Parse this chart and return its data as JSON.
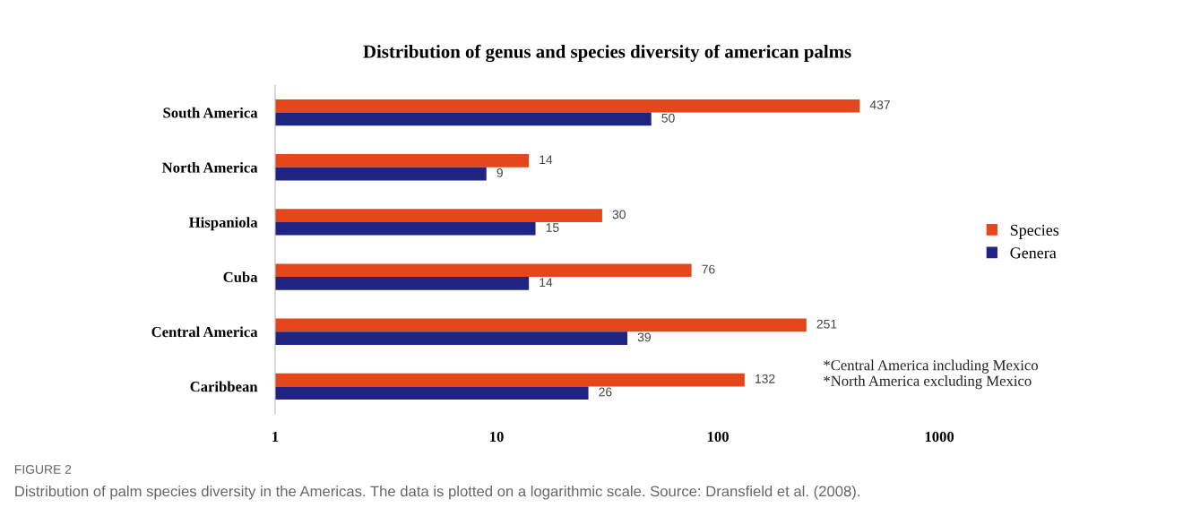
{
  "chart_data": {
    "type": "bar",
    "orientation": "horizontal",
    "title": "Distribution of genus and species diversity of american palms",
    "categories": [
      "South America",
      "North America",
      "Hispaniola",
      "Cuba",
      "Central America",
      "Caribbean"
    ],
    "series": [
      {
        "name": "Species",
        "color": "#e5461b",
        "values": [
          437,
          14,
          30,
          76,
          251,
          132
        ]
      },
      {
        "name": "Genera",
        "color": "#1f2382",
        "values": [
          50,
          9,
          15,
          14,
          39,
          26
        ]
      }
    ],
    "log": "x",
    "xlim": [
      1,
      1000
    ],
    "xticks": [
      1,
      10,
      100,
      1000
    ],
    "data_labels": true,
    "legend": "right",
    "grid": false,
    "annotations": [
      "*Central America including Mexico\n*North America excluding Mexico",
      "FIGURE 2",
      "Distribution of palm species diversity in the Americas. The data is plotted on a logarithmic scale. Source: Dransfield et al. (2008)."
    ]
  }
}
